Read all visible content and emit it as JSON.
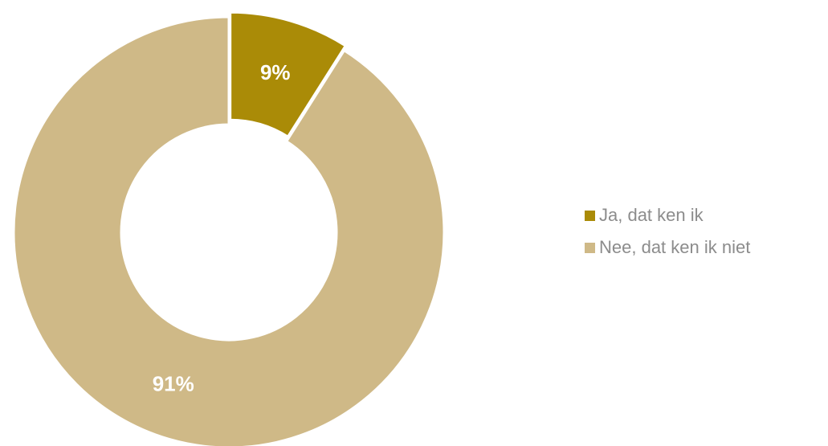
{
  "chart_data": {
    "type": "pie",
    "variant": "donut",
    "title": "",
    "categories": [
      "Ja, dat ken ik",
      "Nee, dat ken ik niet"
    ],
    "values": [
      9,
      91
    ],
    "labels": [
      "9%",
      "91%"
    ],
    "colors": [
      "#aa8b07",
      "#cfb987"
    ],
    "label_color": "#ffffff",
    "legend_position": "right",
    "legend": [
      {
        "label": "Ja, dat ken ik",
        "color": "#aa8b07"
      },
      {
        "label": "Nee, dat ken ik niet",
        "color": "#cfb987"
      }
    ]
  }
}
